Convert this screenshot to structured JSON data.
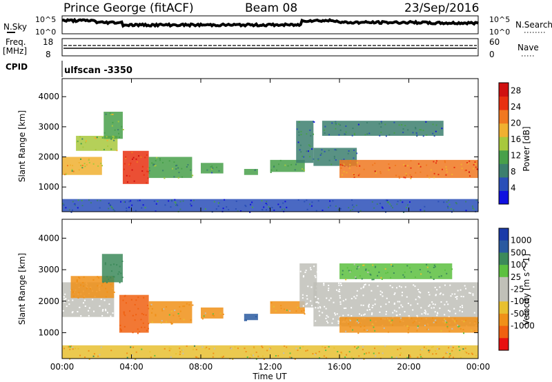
{
  "header": {
    "station": "Prince George (fitACF)",
    "beam": "Beam 08",
    "date": "23/Sep/2016"
  },
  "noise_panel": {
    "left_label": "N.Sky",
    "right_label": "N.Search",
    "left_ticks": [
      "10^5",
      "10^0"
    ],
    "right_ticks": [
      "10^5",
      "10^0"
    ]
  },
  "freq_panel": {
    "label_line1": "Freq.",
    "label_line2": "[MHz]",
    "left_ticks": [
      "18",
      "8"
    ],
    "right_label": "Nave",
    "right_ticks": [
      "60",
      "0"
    ]
  },
  "cpid_panel": {
    "label": "CPID",
    "program": "ulfscan -3350"
  },
  "colors": {
    "power_scale": [
      "#1010e0",
      "#2a4fb8",
      "#3c7f6e",
      "#48a04a",
      "#a8c83c",
      "#f0b030",
      "#f07820",
      "#e83010",
      "#d01010"
    ],
    "velocity_scale": [
      "#e81010",
      "#f06010",
      "#f09018",
      "#e8c030",
      "#c0c0b8",
      "#c0c0b8",
      "#5cc040",
      "#3c8a5a",
      "#2a5aa0",
      "#1a3aa8"
    ],
    "ground_scatter": "#c0c0b8"
  },
  "chart_data": [
    {
      "type": "heatmap",
      "title": "Power",
      "xlabel": "",
      "ylabel": "Slant Range [km]",
      "x_tick_labels": [],
      "y_ticks": [
        1000,
        2000,
        3000,
        4000
      ],
      "xlim_hours": [
        0,
        24
      ],
      "ylim": [
        180,
        4600
      ],
      "colorbar": {
        "label": "Power [dB]",
        "ticks": [
          4,
          8,
          12,
          16,
          20,
          24,
          28
        ],
        "range": [
          0,
          30
        ]
      },
      "echo_regions": [
        {
          "t": [
            0.0,
            2.3
          ],
          "range_km": [
            1400,
            2000
          ],
          "level_db": 17
        },
        {
          "t": [
            0.8,
            3.2
          ],
          "range_km": [
            2200,
            2700
          ],
          "level_db": 14
        },
        {
          "t": [
            2.4,
            3.5
          ],
          "range_km": [
            2600,
            3500
          ],
          "level_db": 12
        },
        {
          "t": [
            3.5,
            5.0
          ],
          "range_km": [
            1100,
            2200
          ],
          "level_db": 26
        },
        {
          "t": [
            5.0,
            7.5
          ],
          "range_km": [
            1300,
            2000
          ],
          "level_db": 12
        },
        {
          "t": [
            8.0,
            9.3
          ],
          "range_km": [
            1450,
            1800
          ],
          "level_db": 10
        },
        {
          "t": [
            10.5,
            11.3
          ],
          "range_km": [
            1400,
            1600
          ],
          "level_db": 10
        },
        {
          "t": [
            12.0,
            14.0
          ],
          "range_km": [
            1500,
            1900
          ],
          "level_db": 12
        },
        {
          "t": [
            13.5,
            14.5
          ],
          "range_km": [
            1800,
            3200
          ],
          "level_db": 8
        },
        {
          "t": [
            14.5,
            17.0
          ],
          "range_km": [
            1700,
            2300
          ],
          "level_db": 8
        },
        {
          "t": [
            16.0,
            24.0
          ],
          "range_km": [
            1300,
            1900
          ],
          "level_db": 22
        },
        {
          "t": [
            15.0,
            22.0
          ],
          "range_km": [
            2700,
            3200
          ],
          "level_db": 8
        },
        {
          "t": [
            0.0,
            24.0
          ],
          "range_km": [
            180,
            600
          ],
          "level_db": 6
        }
      ]
    },
    {
      "type": "heatmap",
      "title": "Velocity",
      "xlabel": "Time UT",
      "ylabel": "Slant Range [km]",
      "x_tick_labels": [
        "00:00",
        "04:00",
        "08:00",
        "12:00",
        "16:00",
        "20:00",
        "00:00"
      ],
      "y_ticks": [
        1000,
        2000,
        3000,
        4000
      ],
      "xlim_hours": [
        0,
        24
      ],
      "ylim": [
        180,
        4600
      ],
      "colorbar": {
        "label": "Velocity [m s^-1]",
        "ticks": [
          1000,
          500,
          100,
          25,
          -25,
          -100,
          -500,
          -1000
        ]
      },
      "echo_regions": [
        {
          "t": [
            0.0,
            3.0
          ],
          "range_km": [
            1500,
            2600
          ],
          "velocity": 0,
          "kind": "ground"
        },
        {
          "t": [
            0.5,
            3.0
          ],
          "range_km": [
            2100,
            2800
          ],
          "velocity": -300
        },
        {
          "t": [
            2.3,
            3.5
          ],
          "range_km": [
            2600,
            3500
          ],
          "velocity": 300
        },
        {
          "t": [
            3.3,
            5.0
          ],
          "range_km": [
            1000,
            2200
          ],
          "velocity": -700
        },
        {
          "t": [
            5.0,
            7.5
          ],
          "range_km": [
            1300,
            2000
          ],
          "velocity": -150
        },
        {
          "t": [
            8.0,
            9.3
          ],
          "range_km": [
            1450,
            1800
          ],
          "velocity": -100
        },
        {
          "t": [
            10.5,
            11.3
          ],
          "range_km": [
            1400,
            1600
          ],
          "velocity": 600
        },
        {
          "t": [
            12.0,
            14.0
          ],
          "range_km": [
            1600,
            2000
          ],
          "velocity": -100
        },
        {
          "t": [
            13.7,
            14.7
          ],
          "range_km": [
            1800,
            3200
          ],
          "velocity": 0,
          "kind": "ground"
        },
        {
          "t": [
            14.5,
            24.0
          ],
          "range_km": [
            1200,
            2600
          ],
          "velocity": 0,
          "kind": "ground"
        },
        {
          "t": [
            16.0,
            22.5
          ],
          "range_km": [
            2700,
            3200
          ],
          "velocity": 100
        },
        {
          "t": [
            16.0,
            24.0
          ],
          "range_km": [
            1000,
            1500
          ],
          "velocity": -100
        },
        {
          "t": [
            0.0,
            24.0
          ],
          "range_km": [
            180,
            600
          ],
          "velocity": -80
        }
      ]
    }
  ]
}
